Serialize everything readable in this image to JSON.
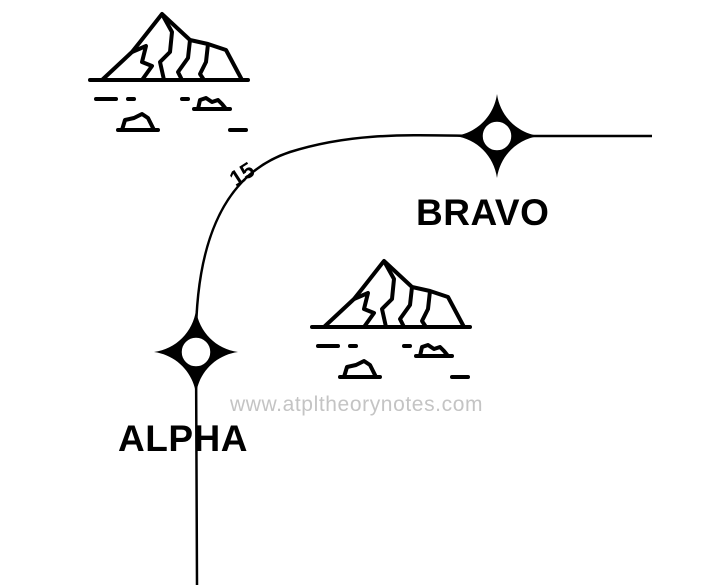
{
  "waypoints": {
    "alpha": {
      "name": "ALPHA"
    },
    "bravo": {
      "name": "BRAVO"
    }
  },
  "route": {
    "distance_label": "15"
  },
  "watermark": "www.atpltheorynotes.com",
  "icons": {
    "waypoint": "four-point-star-waypoint-icon",
    "terrain": "mountain-icon"
  },
  "colors": {
    "line": "#000000",
    "label": "#000000",
    "watermark": "#c4c4c4",
    "background": "#ffffff"
  }
}
